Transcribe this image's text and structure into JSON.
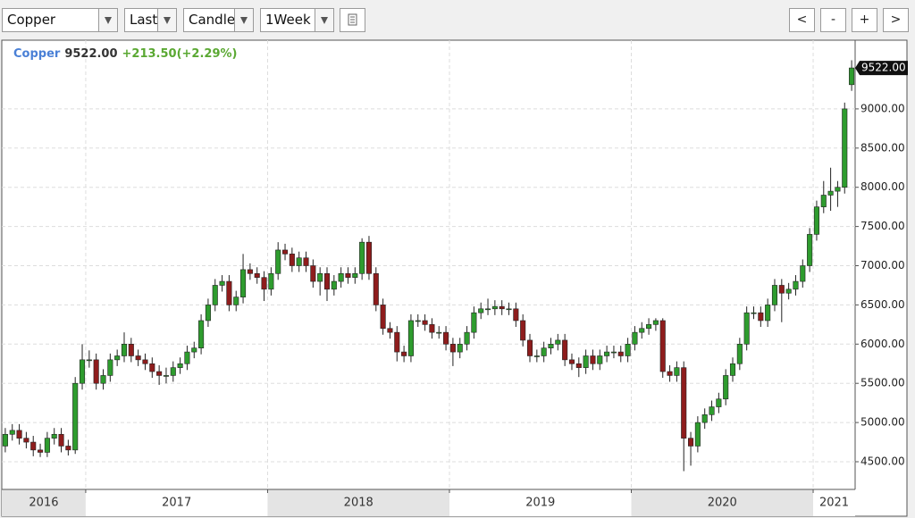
{
  "toolbar": {
    "symbol": "Copper",
    "field": "Last",
    "style": "Candle",
    "period": "1Week",
    "buttons": [
      "<",
      "-",
      "+",
      ">"
    ]
  },
  "chart_data": {
    "type": "candlestick",
    "quote": {
      "name": "Copper",
      "change": "+213.50(+2.29%)"
    },
    "last_price": {
      "value": 9522,
      "label": "9522.00"
    },
    "up_color": "#2e9c2e",
    "down_color": "#8e1c1c",
    "xlim": [
      0,
      122
    ],
    "xticks": [
      {
        "value": 0,
        "label": "2016"
      },
      {
        "value": 12,
        "label": "2017"
      },
      {
        "value": 38,
        "label": "2018"
      },
      {
        "value": 64,
        "label": "2019"
      },
      {
        "value": 90,
        "label": "2020"
      },
      {
        "value": 116,
        "label": "2021"
      }
    ],
    "ylim": [
      4147,
      9876
    ],
    "yticks": [
      {
        "value": 4500,
        "label": "4500.00"
      },
      {
        "value": 5000,
        "label": "5000.00"
      },
      {
        "value": 5500,
        "label": "5500.00"
      },
      {
        "value": 6000,
        "label": "6000.00"
      },
      {
        "value": 6500,
        "label": "6500.00"
      },
      {
        "value": 7000,
        "label": "7000.00"
      },
      {
        "value": 7500,
        "label": "7500.00"
      },
      {
        "value": 8000,
        "label": "8000.00"
      },
      {
        "value": 8500,
        "label": "8500.00"
      },
      {
        "value": 9000,
        "label": "9000.00"
      }
    ],
    "grid": true,
    "open": [
      4700,
      4850,
      4900,
      4800,
      4750,
      4650,
      4620,
      4800,
      4850,
      4700,
      4650,
      5500,
      5800,
      5800,
      5500,
      5600,
      5800,
      5850,
      6000,
      5850,
      5800,
      5750,
      5650,
      5600,
      5600,
      5700,
      5750,
      5900,
      5950,
      6300,
      6500,
      6750,
      6800,
      6500,
      6600,
      6950,
      6900,
      6850,
      6700,
      6900,
      7200,
      7150,
      7000,
      7100,
      7000,
      6800,
      6900,
      6700,
      6800,
      6900,
      6850,
      6900,
      7300,
      6900,
      6500,
      6200,
      6150,
      5900,
      5850,
      6300,
      6300,
      6250,
      6150,
      6150,
      6000,
      5900,
      6000,
      6150,
      6400,
      6450,
      6450,
      6480,
      6450,
      6450,
      6300,
      6050,
      5850,
      5850,
      5950,
      6000,
      6050,
      5800,
      5750,
      5700,
      5850,
      5750,
      5850,
      5900,
      5900,
      5850,
      6000,
      6150,
      6200,
      6250,
      6300,
      5650,
      5600,
      5700,
      4800,
      4700,
      5000,
      5100,
      5200,
      5300,
      5600,
      5750,
      6000,
      6400,
      6400,
      6300,
      6500,
      6750,
      6650,
      6700,
      6800,
      7000,
      7400,
      7750,
      7900,
      7950,
      8000,
      9308.5
    ],
    "high": [
      4930,
      4980,
      4980,
      4880,
      4830,
      4730,
      4880,
      4930,
      4930,
      4780,
      5580,
      6000,
      5920,
      5880,
      5680,
      5880,
      5930,
      6150,
      6080,
      5930,
      5880,
      5830,
      5730,
      5700,
      5780,
      5830,
      5980,
      6030,
      6380,
      6580,
      6830,
      6880,
      6880,
      6680,
      7150,
      7030,
      6980,
      6930,
      6980,
      7300,
      7280,
      7230,
      7180,
      7180,
      7080,
      6980,
      6980,
      6880,
      6980,
      6980,
      6980,
      7350,
      7380,
      6980,
      6580,
      6280,
      6230,
      5980,
      6380,
      6380,
      6380,
      6330,
      6230,
      6230,
      6080,
      6080,
      6230,
      6480,
      6530,
      6580,
      6560,
      6560,
      6530,
      6530,
      6380,
      6130,
      5930,
      6030,
      6080,
      6130,
      6130,
      5880,
      5830,
      5930,
      5930,
      5930,
      5980,
      5980,
      5980,
      6080,
      6230,
      6280,
      6330,
      6330,
      6330,
      5730,
      5780,
      5780,
      4880,
      5080,
      5180,
      5280,
      5380,
      5680,
      5830,
      6080,
      6480,
      6480,
      6480,
      6580,
      6830,
      6830,
      6780,
      6880,
      7080,
      7480,
      7830,
      8080,
      8250,
      8080,
      9080,
      9620
    ],
    "low": [
      4620,
      4770,
      4720,
      4670,
      4570,
      4560,
      4560,
      4720,
      4620,
      4580,
      4600,
      5420,
      5700,
      5420,
      5420,
      5520,
      5720,
      5770,
      5770,
      5720,
      5670,
      5570,
      5480,
      5500,
      5520,
      5620,
      5670,
      5820,
      5870,
      6220,
      6420,
      6670,
      6420,
      6420,
      6520,
      6820,
      6770,
      6550,
      6620,
      6820,
      7070,
      6920,
      6920,
      6920,
      6720,
      6620,
      6550,
      6620,
      6720,
      6770,
      6770,
      6820,
      6820,
      6420,
      6120,
      6070,
      5780,
      5770,
      5770,
      6220,
      6170,
      6070,
      6070,
      5920,
      5720,
      5820,
      5920,
      6070,
      6320,
      6370,
      6370,
      6370,
      6370,
      6220,
      5970,
      5770,
      5770,
      5770,
      5870,
      5920,
      5720,
      5670,
      5580,
      5620,
      5670,
      5670,
      5770,
      5820,
      5770,
      5770,
      5920,
      6070,
      6120,
      6170,
      5570,
      5520,
      5520,
      4380,
      4450,
      4620,
      4920,
      5020,
      5120,
      5220,
      5520,
      5670,
      5920,
      6320,
      6220,
      6220,
      6420,
      6280,
      6570,
      6620,
      6720,
      6920,
      7320,
      7670,
      7700,
      7750,
      7920,
      9230
    ],
    "close": [
      4850,
      4900,
      4800,
      4750,
      4650,
      4620,
      4800,
      4850,
      4700,
      4650,
      5500,
      5800,
      5800,
      5500,
      5600,
      5800,
      5850,
      6000,
      5850,
      5800,
      5750,
      5650,
      5600,
      5600,
      5700,
      5750,
      5900,
      5950,
      6300,
      6500,
      6750,
      6800,
      6500,
      6600,
      6950,
      6900,
      6850,
      6700,
      6900,
      7200,
      7150,
      7000,
      7100,
      7000,
      6800,
      6900,
      6700,
      6800,
      6900,
      6850,
      6900,
      7300,
      6900,
      6500,
      6200,
      6150,
      5900,
      5850,
      6300,
      6300,
      6250,
      6150,
      6150,
      6000,
      5900,
      6000,
      6150,
      6400,
      6450,
      6450,
      6480,
      6450,
      6450,
      6300,
      6050,
      5850,
      5850,
      5950,
      6000,
      6050,
      5800,
      5750,
      5700,
      5850,
      5750,
      5850,
      5900,
      5900,
      5850,
      6000,
      6150,
      6200,
      6250,
      6300,
      5650,
      5600,
      5700,
      4800,
      4700,
      5000,
      5100,
      5200,
      5300,
      5600,
      5750,
      6000,
      6400,
      6400,
      6300,
      6500,
      6750,
      6650,
      6700,
      6800,
      7000,
      7400,
      7750,
      7900,
      7950,
      8000,
      9000,
      9522
    ]
  }
}
